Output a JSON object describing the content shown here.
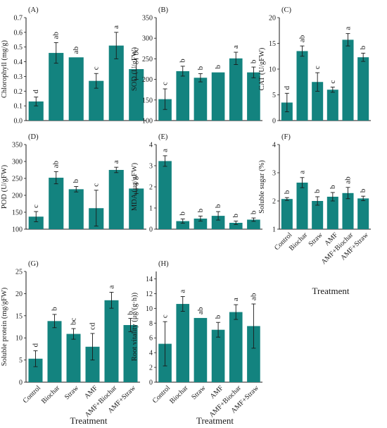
{
  "bar_color": "#13837f",
  "chart_data": [
    {
      "type": "bar",
      "panel": "(A)",
      "ylabel": "Chlorophyll (mg/g)",
      "categories": [
        "Control",
        "Biochar",
        "Straw",
        "AMF",
        "AMF+Biochar",
        "AMF+Straw"
      ],
      "ylim": [
        0,
        0.7
      ],
      "yticks": [
        0,
        0.1,
        0.2,
        0.3,
        0.4,
        0.5,
        0.6,
        0.7
      ],
      "ytick_labels": [
        "0.0",
        "0.1",
        "0.2",
        "0.3",
        "0.4",
        "0.5",
        "0.6",
        "0.7"
      ],
      "values": [
        0.13,
        0.46,
        0.43,
        0.27,
        0.51,
        0.35
      ],
      "errors": [
        0.03,
        0.07,
        0.0,
        0.05,
        0.09,
        0.07
      ],
      "letters": [
        "d",
        "ab",
        "ab",
        "c",
        "a",
        "bc"
      ],
      "show_categories": false,
      "xlabel": ""
    },
    {
      "type": "bar",
      "panel": "(B)",
      "ylabel": "SOD (U/gFW)",
      "categories": [
        "Control",
        "Biochar",
        "Straw",
        "AMF",
        "AMF+Biochar",
        "AMF+Straw"
      ],
      "ylim": [
        100,
        350
      ],
      "yticks": [
        100,
        150,
        200,
        250,
        300,
        350
      ],
      "ytick_labels": [
        "100",
        "150",
        "200",
        "250",
        "300",
        "350"
      ],
      "values": [
        152,
        220,
        204,
        217,
        251,
        217
      ],
      "errors": [
        25,
        12,
        10,
        0,
        15,
        13
      ],
      "letters": [
        "c",
        "b",
        "b",
        "b",
        "a",
        "b"
      ],
      "show_categories": false,
      "xlabel": ""
    },
    {
      "type": "bar",
      "panel": "(C)",
      "ylabel": "CAT (U/gFW)",
      "categories": [
        "Control",
        "Biochar",
        "Straw",
        "AMF",
        "AMF+Biochar",
        "AMF+Straw"
      ],
      "ylim": [
        0,
        20
      ],
      "yticks": [
        0,
        5,
        10,
        15,
        20
      ],
      "ytick_labels": [
        "0",
        "5",
        "10",
        "15",
        "20"
      ],
      "values": [
        3.5,
        13.5,
        7.5,
        6.0,
        15.7,
        12.3
      ],
      "errors": [
        1.8,
        1.0,
        1.8,
        0.5,
        1.2,
        0.8
      ],
      "letters": [
        "d",
        "ab",
        "c",
        "c",
        "a",
        "b"
      ],
      "show_categories": false,
      "xlabel": ""
    },
    {
      "type": "bar",
      "panel": "(D)",
      "ylabel": "POD (U/gFW)",
      "categories": [
        "Control",
        "Biochar",
        "Straw",
        "AMF",
        "AMF+Biochar",
        "AMF+Straw"
      ],
      "ylim": [
        100,
        350
      ],
      "yticks": [
        100,
        150,
        200,
        250,
        300,
        350
      ],
      "ytick_labels": [
        "100",
        "150",
        "200",
        "250",
        "300",
        "350"
      ],
      "values": [
        137,
        252,
        218,
        162,
        275,
        220
      ],
      "errors": [
        15,
        18,
        8,
        53,
        8,
        15
      ],
      "letters": [
        "c",
        "ab",
        "b",
        "c",
        "a",
        "b"
      ],
      "show_categories": false,
      "xlabel": ""
    },
    {
      "type": "bar",
      "panel": "(E)",
      "ylabel": "MDA (μg/gFW)",
      "categories": [
        "Control",
        "Biochar",
        "Straw",
        "AMF",
        "AMF+Biochar",
        "AMF+Straw"
      ],
      "ylim": [
        0,
        4
      ],
      "yticks": [
        0,
        1,
        2,
        3,
        4
      ],
      "ytick_labels": [
        "0",
        "1",
        "2",
        "3",
        "4"
      ],
      "values": [
        3.22,
        0.38,
        0.5,
        0.63,
        0.3,
        0.45
      ],
      "errors": [
        0.25,
        0.1,
        0.12,
        0.2,
        0.08,
        0.08
      ],
      "letters": [
        "a",
        "b",
        "b",
        "b",
        "b",
        "b"
      ],
      "show_categories": false,
      "xlabel": ""
    },
    {
      "type": "bar",
      "panel": "(F)",
      "ylabel": "Soluble sugar (%)",
      "categories": [
        "Control",
        "Biochar",
        "Straw",
        "AMF",
        "AMF+Biochar",
        "AMF+Straw"
      ],
      "ylim": [
        1,
        4
      ],
      "yticks": [
        1,
        2,
        3,
        4
      ],
      "ytick_labels": [
        "1",
        "2",
        "3",
        "4"
      ],
      "values": [
        2.07,
        2.65,
        2.0,
        2.15,
        2.28,
        2.09
      ],
      "errors": [
        0.05,
        0.18,
        0.15,
        0.15,
        0.2,
        0.08
      ],
      "letters": [
        "b",
        "a",
        "b",
        "b",
        "ab",
        "b"
      ],
      "show_categories": true,
      "xlabel": "Treatment"
    },
    {
      "type": "bar",
      "panel": "(G)",
      "ylabel": "Soluble protein (mg/gFW)",
      "categories": [
        "Control",
        "Biochar",
        "Straw",
        "AMF",
        "AMF+Biochar",
        "AMF+Straw"
      ],
      "ylim": [
        0,
        25
      ],
      "yticks": [
        0,
        5,
        10,
        15,
        20,
        25
      ],
      "ytick_labels": [
        "0",
        "5",
        "10",
        "15",
        "20",
        "25"
      ],
      "values": [
        5.3,
        13.8,
        10.9,
        8.0,
        18.5,
        12.9
      ],
      "errors": [
        1.8,
        1.5,
        1.2,
        3.0,
        1.8,
        1.5
      ],
      "letters": [
        "d",
        "b",
        "bc",
        "cd",
        "a",
        "b"
      ],
      "show_categories": true,
      "xlabel": "Treatment"
    },
    {
      "type": "bar",
      "panel": "(H)",
      "ylabel": "Root vitality (μg/(g·h))",
      "categories": [
        "Control",
        "Biochar",
        "Straw",
        "AMF",
        "AMF+Biochar",
        "AMF+Straw"
      ],
      "ylim": [
        0,
        15
      ],
      "yticks": [
        0,
        2,
        4,
        6,
        8,
        10,
        12,
        14
      ],
      "ytick_labels": [
        "0",
        "2",
        "4",
        "6",
        "8",
        "10",
        "12",
        "14"
      ],
      "values": [
        5.2,
        10.6,
        8.7,
        7.1,
        9.5,
        7.6
      ],
      "errors": [
        3.0,
        1.0,
        0.0,
        1.0,
        1.0,
        3.0
      ],
      "letters": [
        "c",
        "a",
        "ab",
        "b",
        "a",
        "ab"
      ],
      "show_categories": true,
      "xlabel": "Treatment"
    }
  ]
}
